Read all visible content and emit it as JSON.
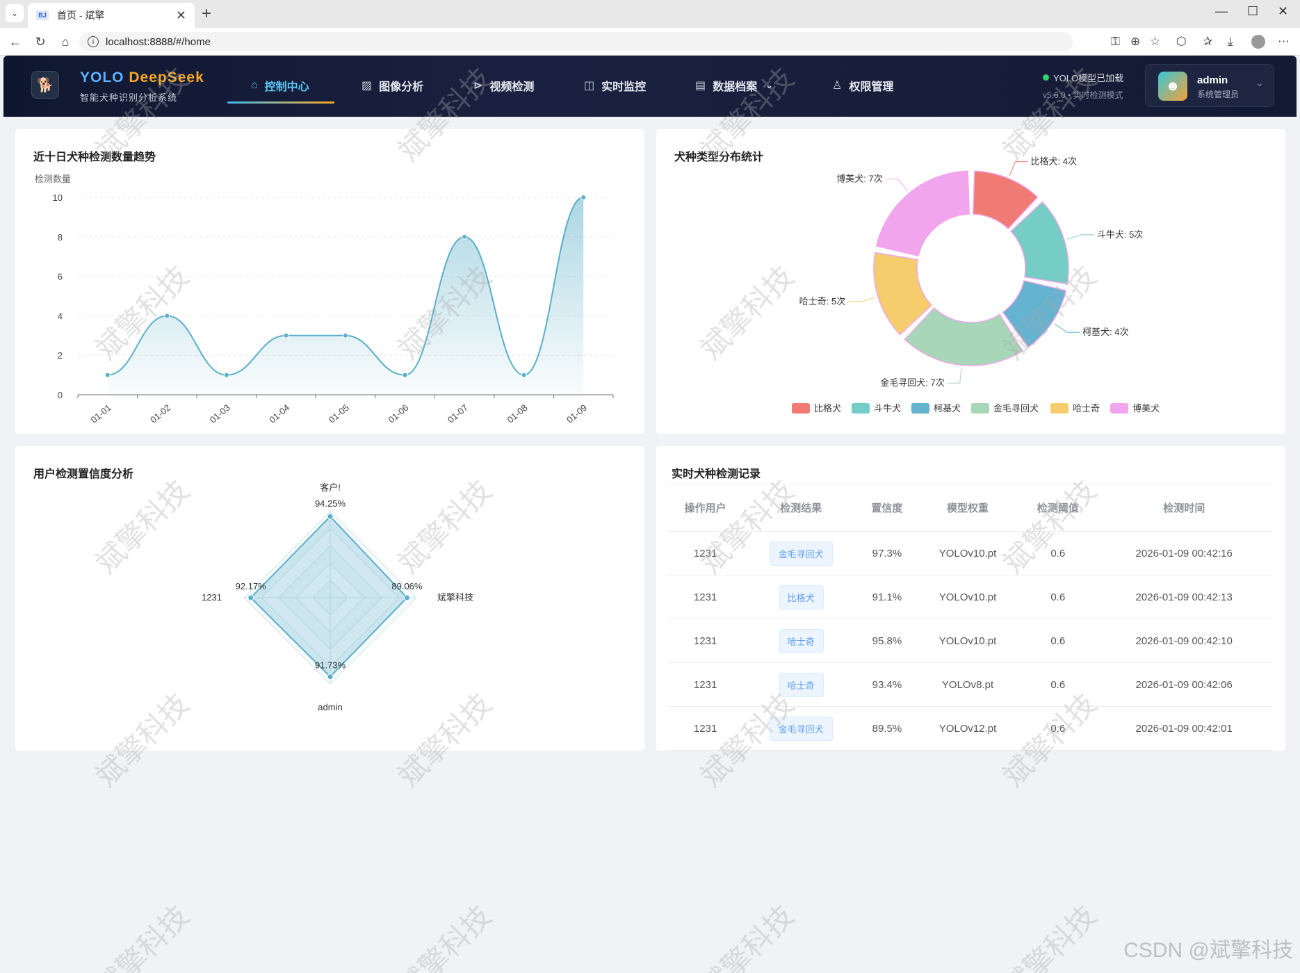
{
  "browser": {
    "tab_title": "首页 - 斌擎",
    "tab_favicon": "BJ",
    "url": "localhost:8888/#/home"
  },
  "header": {
    "brand_yolo": "YOLO",
    "brand_deepseek": "DeepSeek",
    "subtitle": "智能犬种识别分析系统",
    "nav": [
      {
        "label": "控制中心",
        "icon": "home-icon",
        "active": true
      },
      {
        "label": "图像分析",
        "icon": "image-icon"
      },
      {
        "label": "视频检测",
        "icon": "play-circle-icon"
      },
      {
        "label": "实时监控",
        "icon": "camera-icon"
      },
      {
        "label": "数据档案",
        "icon": "document-icon"
      },
      {
        "label": "权限管理",
        "icon": "user-icon"
      }
    ],
    "model_status": "YOLO模型已加载",
    "version_line": "v5.6.0 • 实时检测模式",
    "user": {
      "name": "admin",
      "role": "系统管理员"
    }
  },
  "trend": {
    "title": "近十日犬种检测数量趋势",
    "chart_data": {
      "type": "line",
      "ylabel": "检测数量",
      "categories": [
        "01-01",
        "01-02",
        "01-03",
        "01-04",
        "01-05",
        "01-06",
        "01-07",
        "01-08",
        "01-09"
      ],
      "values": [
        1,
        4,
        1,
        3,
        3,
        1,
        8,
        1,
        10
      ],
      "ylim": [
        0,
        10
      ],
      "yticks": [
        "0",
        "2",
        "4",
        "6",
        "8",
        "10"
      ],
      "color": "#5aaec9"
    }
  },
  "pie": {
    "title": "犬种类型分布统计",
    "chart_data": {
      "type": "pie",
      "slices": [
        {
          "name": "比格犬",
          "value": 4,
          "label": "比格犬: 4次",
          "color": "#f07a74"
        },
        {
          "name": "斗牛犬",
          "value": 5,
          "label": "斗牛犬: 5次",
          "color": "#75cdc5"
        },
        {
          "name": "柯基犬",
          "value": 4,
          "label": "柯基犬: 4次",
          "color": "#63b3d1"
        },
        {
          "name": "金毛寻回犬",
          "value": 7,
          "label": "金毛寻回犬: 7次",
          "color": "#a7d6b8"
        },
        {
          "name": "哈士奇",
          "value": 5,
          "label": "哈士奇: 5次",
          "color": "#f6cd6d"
        },
        {
          "name": "博美犬",
          "value": 7,
          "label": "博美犬: 7次",
          "color": "#f0a5ec"
        }
      ]
    }
  },
  "radar": {
    "title": "用户检测置信度分析",
    "chart_data": {
      "type": "radar",
      "axes": [
        "客户!",
        "斌擎科技",
        "admin",
        "1231"
      ],
      "values": [
        94.25,
        89.06,
        91.73,
        92.17
      ],
      "value_labels": [
        "94.25%",
        "89.06%",
        "91.73%",
        "92.17%"
      ],
      "color": "#5aaec9"
    }
  },
  "records": {
    "title": "实时犬种检测记录",
    "columns": [
      "操作用户",
      "检测结果",
      "置信度",
      "模型权重",
      "检测阈值",
      "检测时间"
    ],
    "rows": [
      [
        "1231",
        "金毛寻回犬",
        "97.3%",
        "YOLOv10.pt",
        "0.6",
        "2026-01-09 00:42:16"
      ],
      [
        "1231",
        "比格犬",
        "91.1%",
        "YOLOv10.pt",
        "0.6",
        "2026-01-09 00:42:13"
      ],
      [
        "1231",
        "哈士奇",
        "95.8%",
        "YOLOv10.pt",
        "0.6",
        "2026-01-09 00:42:10"
      ],
      [
        "1231",
        "哈士奇",
        "93.4%",
        "YOLOv8.pt",
        "0.6",
        "2026-01-09 00:42:06"
      ],
      [
        "1231",
        "金毛寻回犬",
        "89.5%",
        "YOLOv12.pt",
        "0.6",
        "2026-01-09 00:42:01"
      ]
    ]
  },
  "watermark": {
    "text": "斌擎科技",
    "corner": "CSDN @斌擎科技"
  }
}
